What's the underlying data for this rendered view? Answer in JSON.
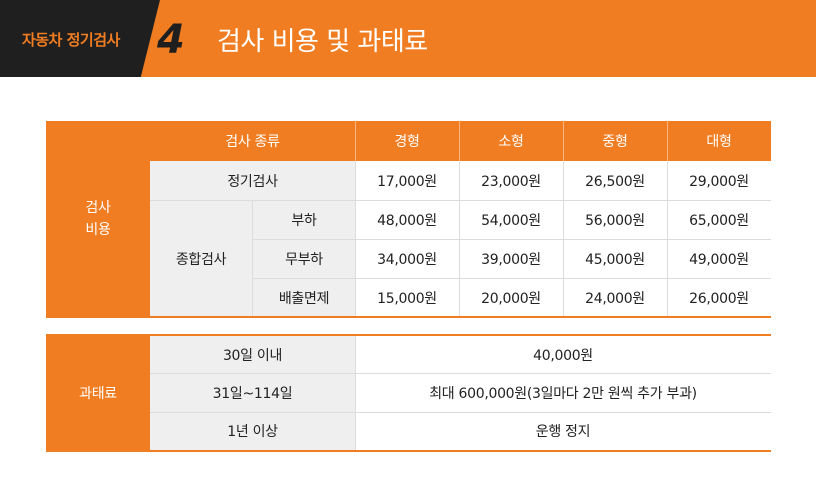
{
  "header": {
    "category": "자동차 정기검사",
    "number": "4",
    "title": "검사 비용 및 과태료"
  },
  "cost_table": {
    "section_label": "검사\n비용",
    "col_header": "검사 종류",
    "vehicle_sizes": [
      "경형",
      "소형",
      "중형",
      "대형"
    ],
    "regular": {
      "label": "정기검사",
      "values": [
        "17,000원",
        "23,000원",
        "26,500원",
        "29,000원"
      ]
    },
    "comprehensive": {
      "label": "종합검사",
      "rows": [
        {
          "label": "부하",
          "values": [
            "48,000원",
            "54,000원",
            "56,000원",
            "65,000원"
          ]
        },
        {
          "label": "무부하",
          "values": [
            "34,000원",
            "39,000원",
            "45,000원",
            "49,000원"
          ]
        },
        {
          "label": "배출면제",
          "values": [
            "15,000원",
            "20,000원",
            "24,000원",
            "26,000원"
          ]
        }
      ]
    }
  },
  "fine_table": {
    "section_label": "과태료",
    "rows": [
      {
        "period": "30일 이내",
        "fine": "40,000원"
      },
      {
        "period": "31일~114일",
        "fine": "최대 600,000원(3일마다 2만 원씩 추가 부과)"
      },
      {
        "period": "1년 이상",
        "fine": "운행 정지"
      }
    ]
  },
  "colors": {
    "accent": "#f07d22",
    "dark": "#1f1f1f",
    "row_gray": "#efefef"
  }
}
